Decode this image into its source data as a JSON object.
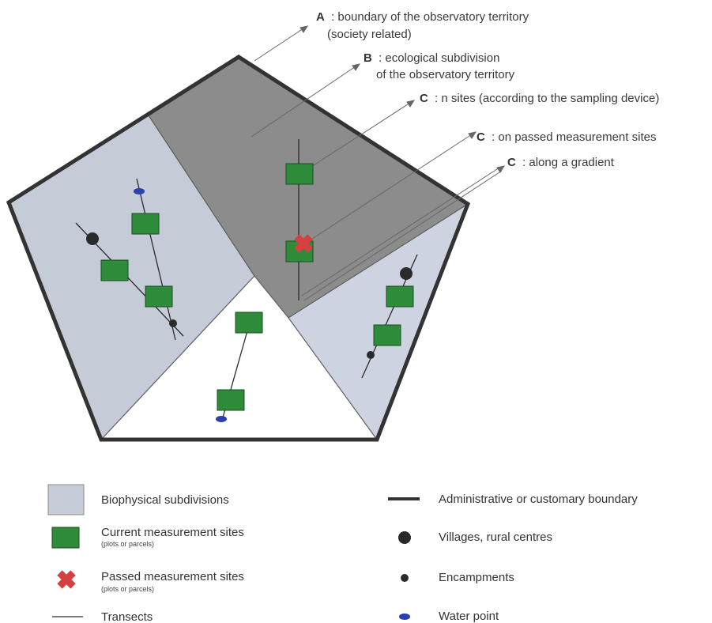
{
  "annotations": {
    "a": {
      "letter": "A",
      "line1": ": boundary of the observatory territory",
      "line2": "(society related)"
    },
    "b": {
      "letter": "B",
      "line1": ": ecological subdivision",
      "line2": "of the observatory territory"
    },
    "c1": {
      "letter": "C",
      "line1": ": n sites (according to the sampling device)"
    },
    "c2": {
      "letter": "C",
      "line1": ": on passed measurement sites"
    },
    "c3": {
      "letter": "C",
      "line1": ": along a gradient"
    }
  },
  "legend": {
    "biophysical": {
      "label": "Biophysical subdivisions"
    },
    "current_sites": {
      "label": "Current measurement sites",
      "sub": "(plots or parcels)"
    },
    "passed_sites": {
      "label": "Passed measurement sites",
      "sub": "(plots or parcels)"
    },
    "transects": {
      "label": "Transects"
    },
    "boundary": {
      "label": "Administrative or customary boundary"
    },
    "villages": {
      "label": "Villages, rural centres"
    },
    "encampments": {
      "label": "Encampments"
    },
    "water_point": {
      "label": "Water point"
    }
  },
  "colors": {
    "region_left": "#c6cbd8",
    "region_top": "#8c8c8c",
    "region_right": "#cdd3e0",
    "region_bottom": "#ffffff",
    "site_fill": "#2e8b3a",
    "site_stroke": "#1b4d22",
    "passed_marker": "#d64040",
    "boundary": "#333333",
    "water_point": "#2a3fb0"
  }
}
